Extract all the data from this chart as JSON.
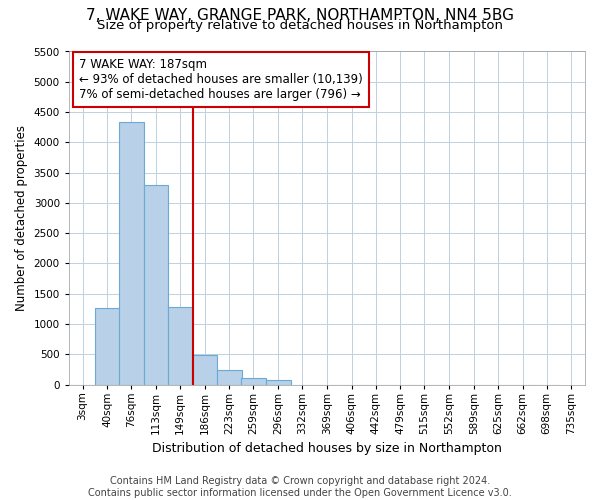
{
  "title": "7, WAKE WAY, GRANGE PARK, NORTHAMPTON, NN4 5BG",
  "subtitle": "Size of property relative to detached houses in Northampton",
  "xlabel": "Distribution of detached houses by size in Northampton",
  "ylabel": "Number of detached properties",
  "bin_edges": [
    3,
    40,
    76,
    113,
    149,
    186,
    223,
    259,
    296,
    332,
    369,
    406,
    442,
    479,
    515,
    552,
    589,
    625,
    662,
    698,
    735
  ],
  "bar_heights": [
    0,
    1270,
    4330,
    3300,
    1280,
    490,
    240,
    110,
    70,
    0,
    0,
    0,
    0,
    0,
    0,
    0,
    0,
    0,
    0,
    0
  ],
  "bar_color": "#b8d0e8",
  "bar_edge_color": "#6aaad4",
  "bar_edge_width": 0.8,
  "property_size": 187,
  "red_line_color": "#cc0000",
  "annotation_text": "7 WAKE WAY: 187sqm\n← 93% of detached houses are smaller (10,139)\n7% of semi-detached houses are larger (796) →",
  "annotation_box_color": "#ffffff",
  "annotation_box_edge_color": "#cc0000",
  "ylim": [
    0,
    5500
  ],
  "yticks": [
    0,
    500,
    1000,
    1500,
    2000,
    2500,
    3000,
    3500,
    4000,
    4500,
    5000,
    5500
  ],
  "grid_color": "#c0d0e0",
  "background_color": "#ffffff",
  "plot_bg_color": "#ffffff",
  "footer_line1": "Contains HM Land Registry data © Crown copyright and database right 2024.",
  "footer_line2": "Contains public sector information licensed under the Open Government Licence v3.0.",
  "title_fontsize": 11,
  "subtitle_fontsize": 9.5,
  "xlabel_fontsize": 9,
  "ylabel_fontsize": 8.5,
  "tick_fontsize": 7.5,
  "footer_fontsize": 7,
  "annot_fontsize": 8.5
}
